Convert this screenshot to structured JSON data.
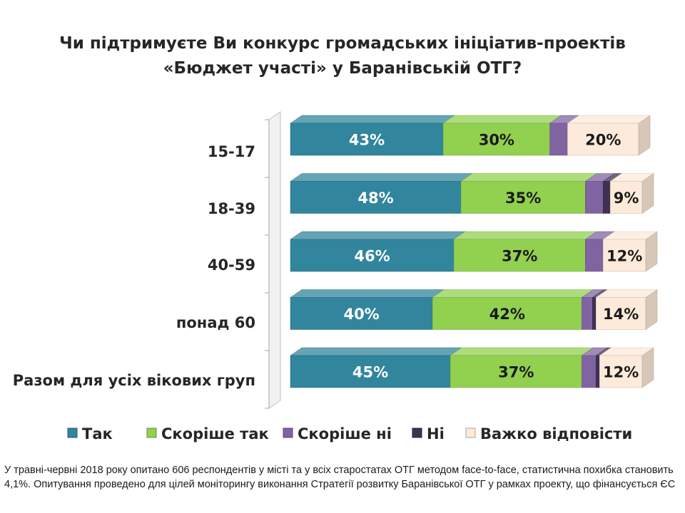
{
  "title_line1": "Чи підтримуєте Ви конкурс громадських ініціатив-проектів",
  "title_line2": "«Бюджет участі» у Баранівській ОТГ?",
  "footnote": "У травні-червні 2018 року опитано 606 респондентів у місті та у всіх старостатах ОТГ методом face-to-face, статистична похибка становить 4,1%. Опитування проведено для цілей моніторингу виконання Стратегії розвитку Баранівської ОТГ у рамках проекту, що фінансується ЄС",
  "chart_data": {
    "type": "bar",
    "orientation": "horizontal",
    "stacked": true,
    "percent_stacked": true,
    "categories": [
      "15-17",
      "18-39",
      "40-59",
      "понад 60",
      "Разом для усіх вікових груп"
    ],
    "series": [
      {
        "name": "Так",
        "color": "#31859c",
        "values": [
          43,
          48,
          46,
          40,
          45
        ]
      },
      {
        "name": "Скоріше так",
        "color": "#92d050",
        "values": [
          30,
          35,
          37,
          42,
          37
        ]
      },
      {
        "name": "Скоріше ні",
        "color": "#8064a2",
        "values": [
          5,
          5,
          5,
          3,
          4
        ]
      },
      {
        "name": "Ні",
        "color": "#3f3151",
        "values": [
          0,
          2,
          0,
          1,
          1
        ]
      },
      {
        "name": "Важко відповісти",
        "color": "#fdeada",
        "values": [
          20,
          9,
          12,
          14,
          12
        ]
      }
    ],
    "labels": [
      [
        "43%",
        "30%",
        "",
        "",
        "20%"
      ],
      [
        "48%",
        "35%",
        "",
        "",
        "9%"
      ],
      [
        "46%",
        "37%",
        "",
        "",
        "12%"
      ],
      [
        "40%",
        "42%",
        "",
        "",
        "14%"
      ],
      [
        "45%",
        "37%",
        "",
        "",
        "12%"
      ]
    ],
    "xlim": [
      0,
      100
    ],
    "legend_position": "bottom",
    "grid": false
  }
}
